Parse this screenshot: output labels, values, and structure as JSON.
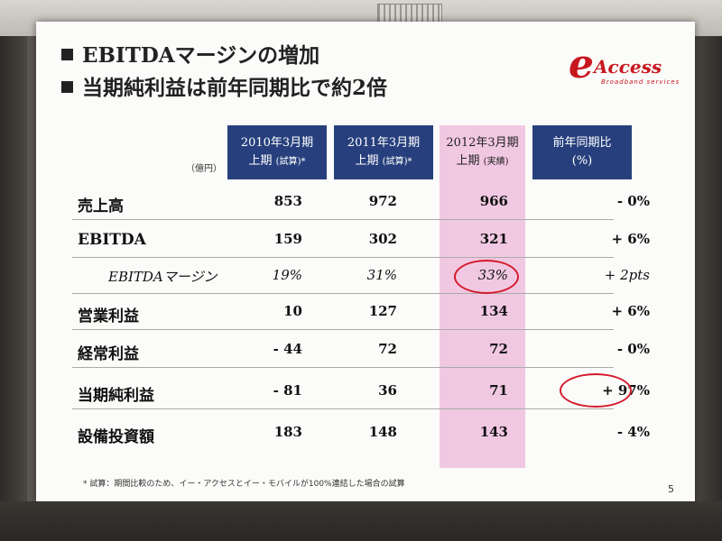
{
  "slide": {
    "headline1": "EBITDAマージンの増加",
    "headline2": "当期純利益は前年同期比で約2倍",
    "logo": {
      "letter": "e",
      "word": "Access",
      "sub": "Broadband services"
    },
    "unit": "（億円）",
    "columns": [
      {
        "line1": "2010年3月期",
        "line2": "上期",
        "note": "(試算)*"
      },
      {
        "line1": "2011年3月期",
        "line2": "上期",
        "note": "(試算)*"
      },
      {
        "line1": "2012年3月期",
        "line2": "上期",
        "note": "(実績)"
      },
      {
        "line1": "前年同期比",
        "line2": "(%)",
        "note": ""
      }
    ],
    "rows": [
      {
        "label": "売上高",
        "v1": "853",
        "v2": "972",
        "v3": "966",
        "v4": "- 0%"
      },
      {
        "label": "EBITDA",
        "v1": "159",
        "v2": "302",
        "v3": "321",
        "v4": "+ 6%"
      },
      {
        "label": "EBITDAマージン",
        "v1": "19%",
        "v2": "31%",
        "v3": "33%",
        "v4": "+ 2pts"
      },
      {
        "label": "営業利益",
        "v1": "10",
        "v2": "127",
        "v3": "134",
        "v4": "+ 6%"
      },
      {
        "label": "経常利益",
        "v1": "- 44",
        "v2": "72",
        "v3": "72",
        "v4": "- 0%"
      },
      {
        "label": "当期純利益",
        "v1": "- 81",
        "v2": "36",
        "v3": "71",
        "v4": "+ 97%"
      },
      {
        "label": "設備投資額",
        "v1": "183",
        "v2": "148",
        "v3": "143",
        "v4": "- 4%"
      }
    ],
    "footnote": "* 試算：期間比較のため、イー・アクセスとイー・モバイルが100%連結した場合の試算",
    "page_number": "5",
    "colors": {
      "header_bg": "#27407d",
      "highlight": "#f1c8e2",
      "accent_red": "#c8171f"
    }
  }
}
